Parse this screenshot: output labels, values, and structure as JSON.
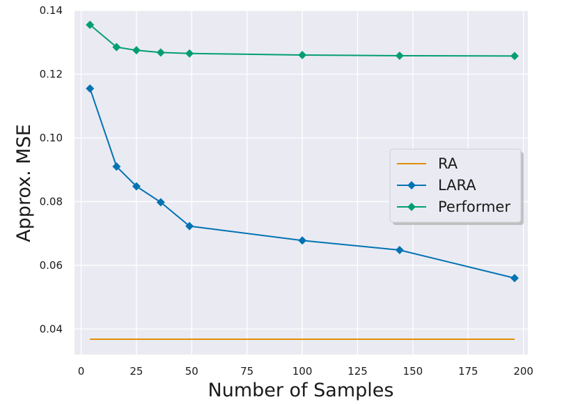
{
  "chart_data": {
    "type": "line",
    "xlabel": "Number of Samples",
    "ylabel": "Approx. MSE",
    "xlim": [
      -3,
      202
    ],
    "ylim": [
      0.032,
      0.14
    ],
    "xticks": [
      0,
      25,
      50,
      75,
      100,
      125,
      150,
      175,
      200
    ],
    "xtick_labels": [
      "0",
      "25",
      "50",
      "75",
      "100",
      "125",
      "150",
      "175",
      "200"
    ],
    "yticks": [
      0.04,
      0.06,
      0.08,
      0.1,
      0.12,
      0.14
    ],
    "ytick_labels": [
      "0.04",
      "0.06",
      "0.08",
      "0.10",
      "0.12",
      "0.14"
    ],
    "grid": true,
    "legend_position": "center-right",
    "series": [
      {
        "name": "RA",
        "color": "#de8f05",
        "marker": "none",
        "x": [
          4,
          196
        ],
        "y": [
          0.0368,
          0.0368
        ]
      },
      {
        "name": "LARA",
        "color": "#0173b2",
        "marker": "diamond",
        "x": [
          4,
          16,
          25,
          36,
          49,
          100,
          144,
          196
        ],
        "y": [
          0.1155,
          0.091,
          0.0848,
          0.0798,
          0.0723,
          0.0678,
          0.0648,
          0.056
        ]
      },
      {
        "name": "Performer",
        "color": "#029e73",
        "marker": "diamond",
        "x": [
          4,
          16,
          25,
          36,
          49,
          100,
          144,
          196
        ],
        "y": [
          0.1355,
          0.1285,
          0.1275,
          0.1268,
          0.1265,
          0.126,
          0.1258,
          0.1257
        ]
      }
    ]
  }
}
